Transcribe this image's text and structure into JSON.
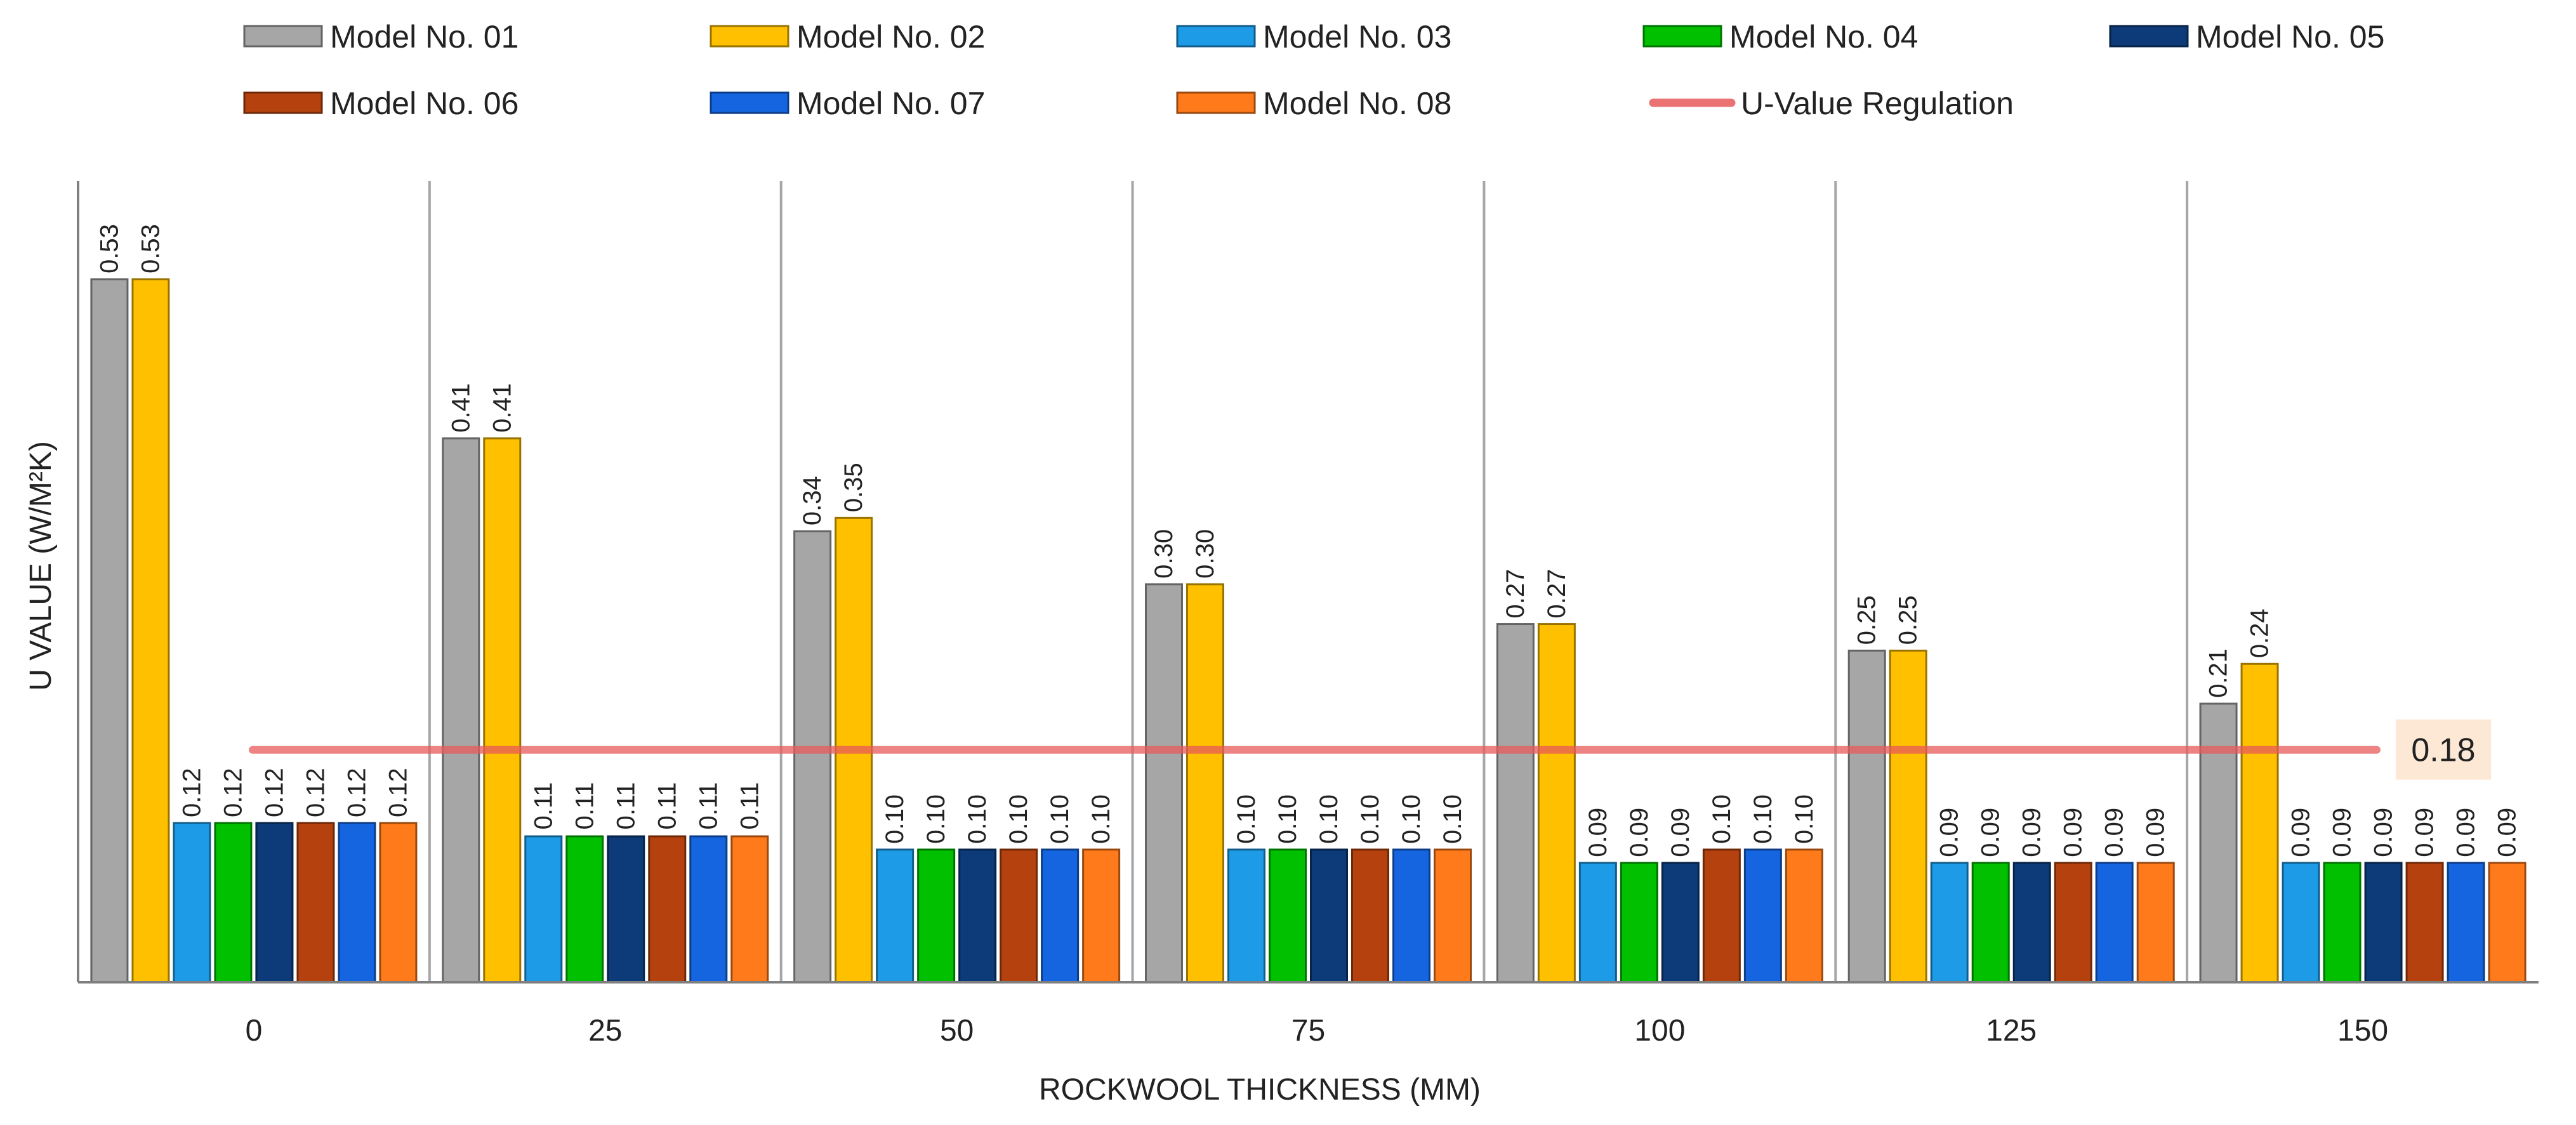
{
  "chart_data": {
    "type": "bar",
    "title": "",
    "xlabel": "ROCKWOOL THICKNESS (MM)",
    "ylabel": "U VALUE  (W/M²K)",
    "ylim": [
      0,
      0.55
    ],
    "grid": false,
    "legend": "top",
    "categories": [
      "0",
      "25",
      "50",
      "75",
      "100",
      "125",
      "150"
    ],
    "series": [
      {
        "name": "Model No. 01",
        "color": "#a6a6a6",
        "values": [
          0.53,
          0.41,
          0.34,
          0.3,
          0.27,
          0.25,
          0.21
        ],
        "labels": [
          "0.53",
          "0.41",
          "0.34",
          "0.30",
          "0.27",
          "0.25",
          "0.21"
        ]
      },
      {
        "name": "Model No. 02",
        "color": "#ffc000",
        "values": [
          0.53,
          0.41,
          0.35,
          0.3,
          0.27,
          0.25,
          0.24
        ],
        "labels": [
          "0.53",
          "0.41",
          "0.35",
          "0.30",
          "0.27",
          "0.25",
          "0.24"
        ]
      },
      {
        "name": "Model No. 03",
        "color": "#1e9be6",
        "values": [
          0.12,
          0.11,
          0.1,
          0.1,
          0.09,
          0.09,
          0.09
        ],
        "labels": [
          "0.12",
          "0.11",
          "0.10",
          "0.10",
          "0.09",
          "0.09",
          "0.09"
        ]
      },
      {
        "name": "Model No. 04",
        "color": "#00c000",
        "values": [
          0.12,
          0.11,
          0.1,
          0.1,
          0.09,
          0.09,
          0.09
        ],
        "labels": [
          "0.12",
          "0.11",
          "0.10",
          "0.10",
          "0.09",
          "0.09",
          "0.09"
        ]
      },
      {
        "name": "Model No. 05",
        "color": "#0d3a78",
        "values": [
          0.12,
          0.11,
          0.1,
          0.1,
          0.09,
          0.09,
          0.09
        ],
        "labels": [
          "0.12",
          "0.11",
          "0.10",
          "0.10",
          "0.09",
          "0.09",
          "0.09"
        ]
      },
      {
        "name": "Model No. 06",
        "color": "#b5420e",
        "values": [
          0.12,
          0.11,
          0.1,
          0.1,
          0.1,
          0.09,
          0.09
        ],
        "labels": [
          "0.12",
          "0.11",
          "0.10",
          "0.10",
          "0.10",
          "0.09",
          "0.09"
        ]
      },
      {
        "name": "Model No. 07",
        "color": "#1565e0",
        "values": [
          0.12,
          0.11,
          0.1,
          0.1,
          0.1,
          0.09,
          0.09
        ],
        "labels": [
          "0.12",
          "0.11",
          "0.10",
          "0.10",
          "0.10",
          "0.09",
          "0.09"
        ]
      },
      {
        "name": "Model No. 08",
        "color": "#ff7a1a",
        "values": [
          0.12,
          0.11,
          0.1,
          0.1,
          0.1,
          0.09,
          0.09
        ],
        "labels": [
          "0.12",
          "0.11",
          "0.10",
          "0.10",
          "0.10",
          "0.09",
          "0.09"
        ]
      }
    ],
    "regulation": {
      "name": "U-Value Regulation",
      "value": 0.18,
      "label": "0.18",
      "color": "#e85a5a"
    }
  }
}
